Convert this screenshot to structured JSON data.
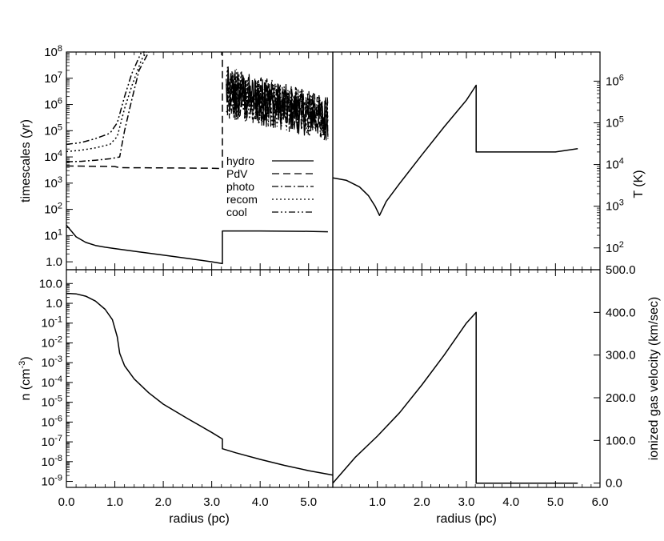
{
  "chart_data": [
    {
      "panel": "top-left",
      "type": "line",
      "xlabel": "",
      "ylabel": "timescales (yr)",
      "ylog": true,
      "xlim": [
        0,
        5.5
      ],
      "ylim": [
        0.5,
        100000000
      ],
      "xticks": [
        0,
        1,
        2,
        3,
        4,
        5
      ],
      "yticks": [
        {
          "value": 1,
          "label": "1.0"
        },
        {
          "value": 10,
          "label": "10",
          "exp": "1"
        },
        {
          "value": 100,
          "label": "10",
          "exp": "2"
        },
        {
          "value": 1000,
          "label": "10",
          "exp": "3"
        },
        {
          "value": 10000,
          "label": "10",
          "exp": "4"
        },
        {
          "value": 100000,
          "label": "10",
          "exp": "5"
        },
        {
          "value": 1000000,
          "label": "10",
          "exp": "6"
        },
        {
          "value": 10000000,
          "label": "10",
          "exp": "7"
        },
        {
          "value": 100000000,
          "label": "10",
          "exp": "8"
        }
      ],
      "legend_position": "center-right",
      "series": [
        {
          "name": "hydro",
          "dash": "solid",
          "x": [
            0,
            0.1,
            0.2,
            0.4,
            0.6,
            0.8,
            1.0,
            1.5,
            2.0,
            2.5,
            3.0,
            3.22,
            3.22,
            3.3,
            4.0,
            5.0,
            5.4
          ],
          "y": [
            25,
            15,
            9,
            5.5,
            4.2,
            3.6,
            3.2,
            2.4,
            1.8,
            1.35,
            1.0,
            0.85,
            15,
            15,
            15,
            14.5,
            14
          ]
        },
        {
          "name": "PdV",
          "dash": "dashed",
          "x": [
            0,
            1.0,
            1.1,
            2.0,
            3.0,
            3.2,
            3.22,
            3.22
          ],
          "y": [
            4500,
            4300,
            3900,
            3800,
            3700,
            3600,
            3600,
            100000000
          ]
        },
        {
          "name": "photo",
          "dash": "dashdot",
          "x": [
            0,
            0.3,
            0.6,
            0.9,
            1.1,
            1.2,
            1.35,
            1.5,
            1.7
          ],
          "y": [
            6500,
            6800,
            7500,
            8500,
            10000,
            100000,
            1500000,
            20000000,
            200000000
          ]
        },
        {
          "name": "recom",
          "dash": "dotted",
          "x": [
            0,
            0.3,
            0.6,
            0.9,
            1.05,
            1.2,
            1.35,
            1.55,
            1.65
          ],
          "y": [
            16000,
            18000,
            22000,
            30000,
            60000,
            700000,
            5000000,
            50000000,
            200000000
          ]
        },
        {
          "name": "cool",
          "dash": "dashdotdot",
          "x": [
            0,
            0.3,
            0.6,
            0.9,
            1.05,
            1.2,
            1.35,
            1.55,
            1.62
          ],
          "y": [
            30000,
            35000,
            50000,
            80000,
            200000,
            2000000,
            15000000,
            120000000,
            200000000
          ]
        }
      ],
      "noise_band": {
        "x_start": 3.3,
        "x_end": 5.4,
        "y_low_start": 300000,
        "y_high_start": 30000000,
        "y_low_end": 40000,
        "y_high_end": 2000000
      }
    },
    {
      "panel": "top-right",
      "type": "line",
      "xlabel": "",
      "ylabel": "T (K)",
      "ylog": true,
      "xlim": [
        0,
        6
      ],
      "ylim": [
        30,
        5000000
      ],
      "yticks": [
        {
          "value": 100,
          "label": "10",
          "exp": "2"
        },
        {
          "value": 1000,
          "label": "10",
          "exp": "3"
        },
        {
          "value": 10000,
          "label": "10",
          "exp": "4"
        },
        {
          "value": 100000,
          "label": "10",
          "exp": "5"
        },
        {
          "value": 1000000,
          "label": "10",
          "exp": "6"
        }
      ],
      "series": [
        {
          "name": "",
          "dash": "solid",
          "x": [
            0,
            0.3,
            0.6,
            0.8,
            0.95,
            1.05,
            1.2,
            1.5,
            2.0,
            2.5,
            3.0,
            3.22,
            3.22,
            4.0,
            5.0,
            5.5
          ],
          "y": [
            4800,
            4200,
            2900,
            1800,
            1000,
            600,
            1300,
            3500,
            17000,
            80000,
            350000,
            800000,
            20000,
            20000,
            20000,
            24000
          ]
        }
      ]
    },
    {
      "panel": "bottom-left",
      "type": "line",
      "xlabel": "radius (pc)",
      "ylabel": "n (cm⁻³)",
      "ylog": true,
      "xlim": [
        0,
        5.5
      ],
      "ylim": [
        5e-10,
        50
      ],
      "xticks": [
        {
          "value": 0,
          "label": "0.0"
        },
        {
          "value": 1,
          "label": "1.0"
        },
        {
          "value": 2,
          "label": "2.0"
        },
        {
          "value": 3,
          "label": "3.0"
        },
        {
          "value": 4,
          "label": "4.0"
        },
        {
          "value": 5,
          "label": "5.0"
        }
      ],
      "yticks": [
        {
          "value": 1e-09,
          "label": "10",
          "exp": "-9"
        },
        {
          "value": 1e-08,
          "label": "10",
          "exp": "-8"
        },
        {
          "value": 1e-07,
          "label": "10",
          "exp": "-7"
        },
        {
          "value": 1e-06,
          "label": "10",
          "exp": "-6"
        },
        {
          "value": 1e-05,
          "label": "10",
          "exp": "-5"
        },
        {
          "value": 0.0001,
          "label": "10",
          "exp": "-4"
        },
        {
          "value": 0.001,
          "label": "10",
          "exp": "-3"
        },
        {
          "value": 0.01,
          "label": "10",
          "exp": "-2"
        },
        {
          "value": 0.1,
          "label": "10",
          "exp": "-1"
        },
        {
          "value": 1,
          "label": "1.0"
        },
        {
          "value": 10,
          "label": "10.0"
        }
      ],
      "series": [
        {
          "name": "",
          "dash": "solid",
          "x": [
            0,
            0.2,
            0.4,
            0.6,
            0.8,
            0.95,
            1.05,
            1.1,
            1.2,
            1.4,
            1.7,
            2.0,
            2.5,
            3.0,
            3.22,
            3.22,
            3.5,
            4.0,
            4.5,
            5.0,
            5.5
          ],
          "y": [
            3.2,
            3.0,
            2.3,
            1.3,
            0.5,
            0.15,
            0.02,
            0.003,
            0.0007,
            0.00015,
            3e-05,
            8e-06,
            1.5e-06,
            3e-07,
            1.4e-07,
            4.5e-08,
            2.8e-08,
            1.3e-08,
            6.5e-09,
            3.5e-09,
            2.1e-09
          ]
        }
      ]
    },
    {
      "panel": "bottom-right",
      "type": "line",
      "xlabel": "radius (pc)",
      "ylabel": "ionized gas velocity (km/sec)",
      "ylog": false,
      "xlim": [
        0,
        6
      ],
      "ylim": [
        -10,
        500
      ],
      "xticks": [
        {
          "value": 0,
          "label": "0.0"
        },
        {
          "value": 1,
          "label": "1.0"
        },
        {
          "value": 2,
          "label": "2.0"
        },
        {
          "value": 3,
          "label": "3.0"
        },
        {
          "value": 4,
          "label": "4.0"
        },
        {
          "value": 5,
          "label": "5.0"
        },
        {
          "value": 6,
          "label": "6.0"
        }
      ],
      "yticks": [
        {
          "value": 0,
          "label": "0.0"
        },
        {
          "value": 100,
          "label": "100.0"
        },
        {
          "value": 200,
          "label": "200.0"
        },
        {
          "value": 300,
          "label": "300.0"
        },
        {
          "value": 400,
          "label": "400.0"
        },
        {
          "value": 500,
          "label": "500.0"
        }
      ],
      "series": [
        {
          "name": "",
          "dash": "solid",
          "x": [
            0,
            0.5,
            1.0,
            1.5,
            2.0,
            2.5,
            3.0,
            3.22,
            3.22,
            4.0,
            5.0,
            5.5
          ],
          "y": [
            0,
            60,
            110,
            165,
            230,
            300,
            375,
            400,
            0,
            0,
            0,
            0
          ]
        }
      ]
    }
  ],
  "legend": {
    "labels": [
      "hydro",
      "PdV",
      "photo",
      "recom",
      "cool"
    ]
  },
  "labels": {
    "left_xtick_0": "0.0",
    "right_xtick_last": "6.0"
  }
}
